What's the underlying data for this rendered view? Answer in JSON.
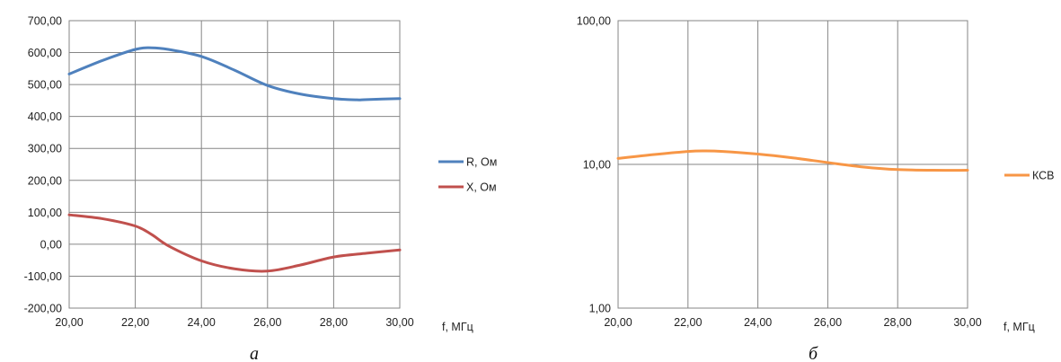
{
  "chart_data": [
    {
      "type": "line",
      "panel_label": "а",
      "xlabel": "f, МГц",
      "ylabel": "",
      "xlim": [
        20,
        30
      ],
      "ylim": [
        -200,
        700
      ],
      "x_ticks": [
        "20,00",
        "22,00",
        "24,00",
        "26,00",
        "28,00",
        "30,00"
      ],
      "y_ticks": [
        "700,00",
        "600,00",
        "500,00",
        "400,00",
        "300,00",
        "200,00",
        "100,00",
        "0,00",
        "-100,00",
        "-200,00"
      ],
      "grid": true,
      "legend_position": "right",
      "series": [
        {
          "name": "R, Ом",
          "color": "#4f81bd",
          "x": [
            20,
            21,
            22,
            22.5,
            23,
            24,
            25,
            26,
            27,
            28,
            28.7,
            29,
            30
          ],
          "values": [
            533,
            575,
            610,
            615,
            610,
            588,
            545,
            497,
            470,
            456,
            452,
            453,
            456
          ]
        },
        {
          "name": "X, Ом",
          "color": "#c0504d",
          "x": [
            20,
            21,
            22,
            22.5,
            23,
            24,
            25,
            26,
            27,
            28,
            29,
            30
          ],
          "values": [
            92,
            80,
            57,
            30,
            -5,
            -52,
            -77,
            -84,
            -65,
            -40,
            -28,
            -18
          ]
        }
      ]
    },
    {
      "type": "line",
      "panel_label": "б",
      "xlabel": "f, МГц",
      "ylabel": "",
      "xlim": [
        20,
        30
      ],
      "ylim": [
        1,
        100
      ],
      "y_scale": "log",
      "x_ticks": [
        "20,00",
        "22,00",
        "24,00",
        "26,00",
        "28,00",
        "30,00"
      ],
      "y_ticks": [
        "100,00",
        "10,00",
        "1,00"
      ],
      "grid": true,
      "legend_position": "right",
      "series": [
        {
          "name": "КСВ",
          "color": "#f79646",
          "x": [
            20,
            21,
            22,
            22.5,
            23,
            24,
            25,
            26,
            27,
            28,
            29,
            30
          ],
          "values": [
            11.0,
            11.7,
            12.3,
            12.4,
            12.3,
            11.8,
            11.1,
            10.3,
            9.6,
            9.2,
            9.1,
            9.1
          ]
        }
      ]
    }
  ]
}
